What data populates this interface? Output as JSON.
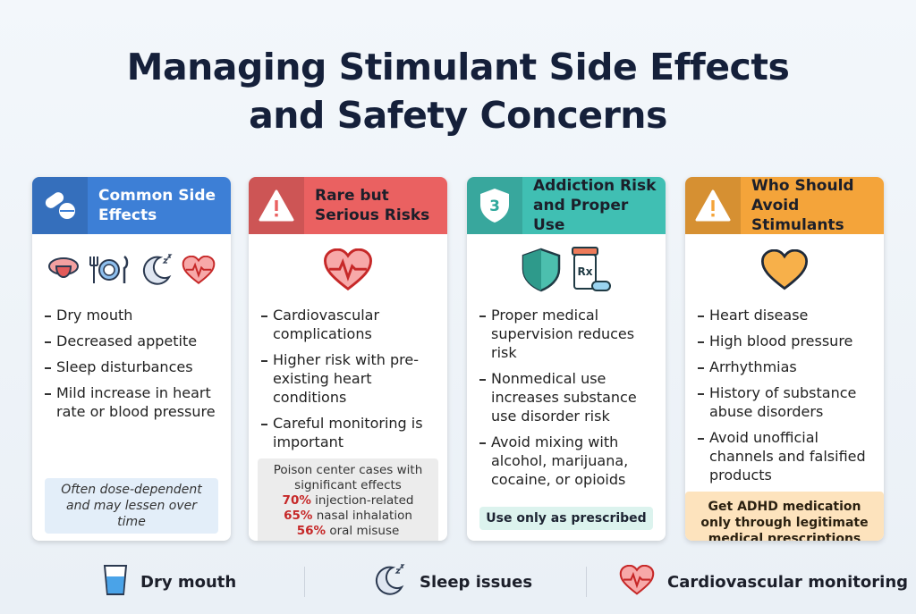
{
  "title": "Managing Stimulant Side Effects and Safety Concerns",
  "cards": [
    {
      "title": "Common Side Effects",
      "color": "#3d7fd6",
      "items": [
        "Dry mouth",
        "Decreased appetite",
        "Sleep disturbances",
        "Mild increase in heart rate or blood pressure"
      ],
      "note": "Often dose-dependent and may lessen over time"
    },
    {
      "title": "Rare but Serious Risks",
      "color": "#ea6161",
      "items": [
        "Cardiovascular complications",
        "Higher risk with pre-existing heart conditions",
        "Careful monitoring is important"
      ],
      "stats": {
        "heading": "Poison center cases with significant effects",
        "rows": [
          {
            "value": "70%",
            "label": "injection-related"
          },
          {
            "value": "65%",
            "label": "nasal inhalation"
          },
          {
            "value": "56%",
            "label": "oral misuse"
          }
        ]
      }
    },
    {
      "title": "Addiction Risk and Proper Use",
      "color": "#40bfb3",
      "badge": "3",
      "rx_label": "Rx",
      "items": [
        "Proper medical supervision reduces risk",
        "Nonmedical use increases substance use disorder risk",
        "Avoid mixing with alcohol, marijuana, cocaine, or opioids"
      ],
      "note": "Use only as prescribed"
    },
    {
      "title": "Who Should Avoid Stimulants",
      "color": "#f4a43a",
      "items": [
        "Heart disease",
        "High blood pressure",
        "Arrhythmias",
        "History of substance abuse disorders",
        "Avoid unofficial channels and falsified products"
      ],
      "note": "Get ADHD medication only through legitimate medical prescriptions"
    }
  ],
  "footer": [
    "Dry mouth",
    "Sleep issues",
    "Cardiovascular monitoring"
  ]
}
